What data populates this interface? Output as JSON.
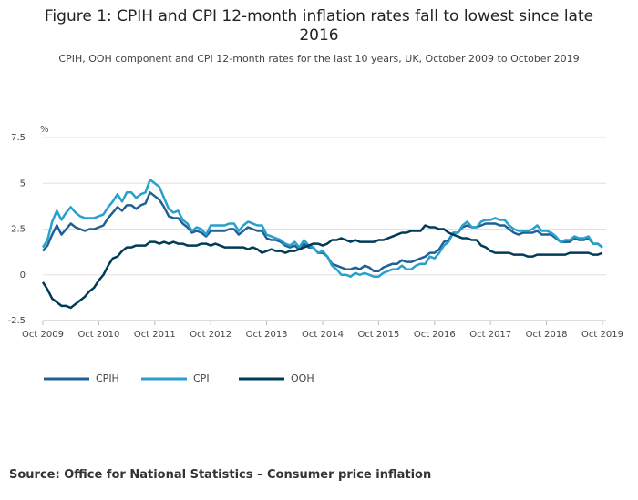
{
  "chart_data": {
    "type": "line",
    "title": "Figure 1: CPIH and CPI 12-month inflation rates fall to lowest since late 2016",
    "subtitle": "CPIH, OOH component and CPI 12-month rates for the last 10 years, UK, October 2009 to October 2019",
    "y_label": "%",
    "source": "Source: Office for National Statistics – Consumer price inflation",
    "x": [
      "2009-10",
      "2009-11",
      "2009-12",
      "2010-01",
      "2010-02",
      "2010-03",
      "2010-04",
      "2010-05",
      "2010-06",
      "2010-07",
      "2010-08",
      "2010-09",
      "2010-10",
      "2010-11",
      "2010-12",
      "2011-01",
      "2011-02",
      "2011-03",
      "2011-04",
      "2011-05",
      "2011-06",
      "2011-07",
      "2011-08",
      "2011-09",
      "2011-10",
      "2011-11",
      "2011-12",
      "2012-01",
      "2012-02",
      "2012-03",
      "2012-04",
      "2012-05",
      "2012-06",
      "2012-07",
      "2012-08",
      "2012-09",
      "2012-10",
      "2012-11",
      "2012-12",
      "2013-01",
      "2013-02",
      "2013-03",
      "2013-04",
      "2013-05",
      "2013-06",
      "2013-07",
      "2013-08",
      "2013-09",
      "2013-10",
      "2013-11",
      "2013-12",
      "2014-01",
      "2014-02",
      "2014-03",
      "2014-04",
      "2014-05",
      "2014-06",
      "2014-07",
      "2014-08",
      "2014-09",
      "2014-10",
      "2014-11",
      "2014-12",
      "2015-01",
      "2015-02",
      "2015-03",
      "2015-04",
      "2015-05",
      "2015-06",
      "2015-07",
      "2015-08",
      "2015-09",
      "2015-10",
      "2015-11",
      "2015-12",
      "2016-01",
      "2016-02",
      "2016-03",
      "2016-04",
      "2016-05",
      "2016-06",
      "2016-07",
      "2016-08",
      "2016-09",
      "2016-10",
      "2016-11",
      "2016-12",
      "2017-01",
      "2017-02",
      "2017-03",
      "2017-04",
      "2017-05",
      "2017-06",
      "2017-07",
      "2017-08",
      "2017-09",
      "2017-10",
      "2017-11",
      "2017-12",
      "2018-01",
      "2018-02",
      "2018-03",
      "2018-04",
      "2018-05",
      "2018-06",
      "2018-07",
      "2018-08",
      "2018-09",
      "2018-10",
      "2018-11",
      "2018-12",
      "2019-01",
      "2019-02",
      "2019-03",
      "2019-04",
      "2019-05",
      "2019-06",
      "2019-07",
      "2019-08",
      "2019-09",
      "2019-10"
    ],
    "series": [
      {
        "name": "CPIH",
        "color": "#206095",
        "values": [
          1.3,
          1.6,
          2.2,
          2.7,
          2.2,
          2.5,
          2.8,
          2.6,
          2.5,
          2.4,
          2.5,
          2.5,
          2.6,
          2.7,
          3.1,
          3.4,
          3.7,
          3.5,
          3.8,
          3.8,
          3.6,
          3.8,
          3.9,
          4.5,
          4.3,
          4.1,
          3.7,
          3.2,
          3.1,
          3.1,
          2.8,
          2.6,
          2.3,
          2.4,
          2.3,
          2.1,
          2.4,
          2.4,
          2.4,
          2.4,
          2.5,
          2.5,
          2.2,
          2.4,
          2.6,
          2.5,
          2.4,
          2.4,
          2.0,
          1.9,
          1.9,
          1.8,
          1.6,
          1.5,
          1.6,
          1.4,
          1.7,
          1.5,
          1.5,
          1.2,
          1.2,
          1.0,
          0.6,
          0.5,
          0.4,
          0.3,
          0.3,
          0.4,
          0.3,
          0.5,
          0.4,
          0.2,
          0.2,
          0.4,
          0.5,
          0.6,
          0.6,
          0.8,
          0.7,
          0.7,
          0.8,
          0.9,
          1.0,
          1.2,
          1.2,
          1.4,
          1.8,
          1.9,
          2.3,
          2.3,
          2.6,
          2.7,
          2.6,
          2.6,
          2.7,
          2.8,
          2.8,
          2.8,
          2.7,
          2.7,
          2.5,
          2.3,
          2.2,
          2.3,
          2.3,
          2.3,
          2.4,
          2.2,
          2.2,
          2.2,
          2.0,
          1.8,
          1.8,
          1.8,
          2.0,
          1.9,
          1.9,
          2.0,
          1.7,
          1.7,
          1.5
        ]
      },
      {
        "name": "CPI",
        "color": "#27a0cc",
        "values": [
          1.5,
          1.9,
          2.9,
          3.5,
          3.0,
          3.4,
          3.7,
          3.4,
          3.2,
          3.1,
          3.1,
          3.1,
          3.2,
          3.3,
          3.7,
          4.0,
          4.4,
          4.0,
          4.5,
          4.5,
          4.2,
          4.4,
          4.5,
          5.2,
          5.0,
          4.8,
          4.2,
          3.6,
          3.4,
          3.5,
          3.0,
          2.8,
          2.4,
          2.6,
          2.5,
          2.2,
          2.7,
          2.7,
          2.7,
          2.7,
          2.8,
          2.8,
          2.4,
          2.7,
          2.9,
          2.8,
          2.7,
          2.7,
          2.2,
          2.1,
          2.0,
          1.9,
          1.7,
          1.6,
          1.8,
          1.5,
          1.9,
          1.6,
          1.5,
          1.2,
          1.3,
          1.0,
          0.5,
          0.3,
          0.0,
          0.0,
          -0.1,
          0.1,
          0.0,
          0.1,
          0.0,
          -0.1,
          -0.1,
          0.1,
          0.2,
          0.3,
          0.3,
          0.5,
          0.3,
          0.3,
          0.5,
          0.6,
          0.6,
          1.0,
          0.9,
          1.2,
          1.6,
          1.8,
          2.3,
          2.3,
          2.7,
          2.9,
          2.6,
          2.6,
          2.9,
          3.0,
          3.0,
          3.1,
          3.0,
          3.0,
          2.7,
          2.5,
          2.4,
          2.4,
          2.4,
          2.5,
          2.7,
          2.4,
          2.4,
          2.3,
          2.1,
          1.8,
          1.9,
          1.9,
          2.1,
          2.0,
          2.0,
          2.1,
          1.7,
          1.7,
          1.5
        ]
      },
      {
        "name": "OOH",
        "color": "#003c57",
        "values": [
          -0.4,
          -0.8,
          -1.3,
          -1.5,
          -1.7,
          -1.7,
          -1.8,
          -1.6,
          -1.4,
          -1.2,
          -0.9,
          -0.7,
          -0.3,
          0.0,
          0.5,
          0.9,
          1.0,
          1.3,
          1.5,
          1.5,
          1.6,
          1.6,
          1.6,
          1.8,
          1.8,
          1.7,
          1.8,
          1.7,
          1.8,
          1.7,
          1.7,
          1.6,
          1.6,
          1.6,
          1.7,
          1.7,
          1.6,
          1.7,
          1.6,
          1.5,
          1.5,
          1.5,
          1.5,
          1.5,
          1.4,
          1.5,
          1.4,
          1.2,
          1.3,
          1.4,
          1.3,
          1.3,
          1.2,
          1.3,
          1.3,
          1.4,
          1.5,
          1.6,
          1.7,
          1.7,
          1.6,
          1.7,
          1.9,
          1.9,
          2.0,
          1.9,
          1.8,
          1.9,
          1.8,
          1.8,
          1.8,
          1.8,
          1.9,
          1.9,
          2.0,
          2.1,
          2.2,
          2.3,
          2.3,
          2.4,
          2.4,
          2.4,
          2.7,
          2.6,
          2.6,
          2.5,
          2.5,
          2.3,
          2.2,
          2.1,
          2.0,
          2.0,
          1.9,
          1.9,
          1.6,
          1.5,
          1.3,
          1.2,
          1.2,
          1.2,
          1.2,
          1.1,
          1.1,
          1.1,
          1.0,
          1.0,
          1.1,
          1.1,
          1.1,
          1.1,
          1.1,
          1.1,
          1.1,
          1.2,
          1.2,
          1.2,
          1.2,
          1.2,
          1.1,
          1.1,
          1.2
        ]
      }
    ],
    "ylim": [
      -2.5,
      7.5
    ],
    "yticks": [
      7.5,
      5,
      2.5,
      0,
      -2.5
    ],
    "xticks": [
      {
        "value": "2009-10",
        "label": "Oct 2009"
      },
      {
        "value": "2010-10",
        "label": "Oct 2010"
      },
      {
        "value": "2011-10",
        "label": "Oct 2011"
      },
      {
        "value": "2012-10",
        "label": "Oct 2012"
      },
      {
        "value": "2013-10",
        "label": "Oct 2013"
      },
      {
        "value": "2014-10",
        "label": "Oct 2014"
      },
      {
        "value": "2015-10",
        "label": "Oct 2015"
      },
      {
        "value": "2016-10",
        "label": "Oct 2016"
      },
      {
        "value": "2017-10",
        "label": "Oct 2017"
      },
      {
        "value": "2018-10",
        "label": "Oct 2018"
      },
      {
        "value": "2019-10",
        "label": "Oct 2019"
      }
    ],
    "grid": true
  }
}
